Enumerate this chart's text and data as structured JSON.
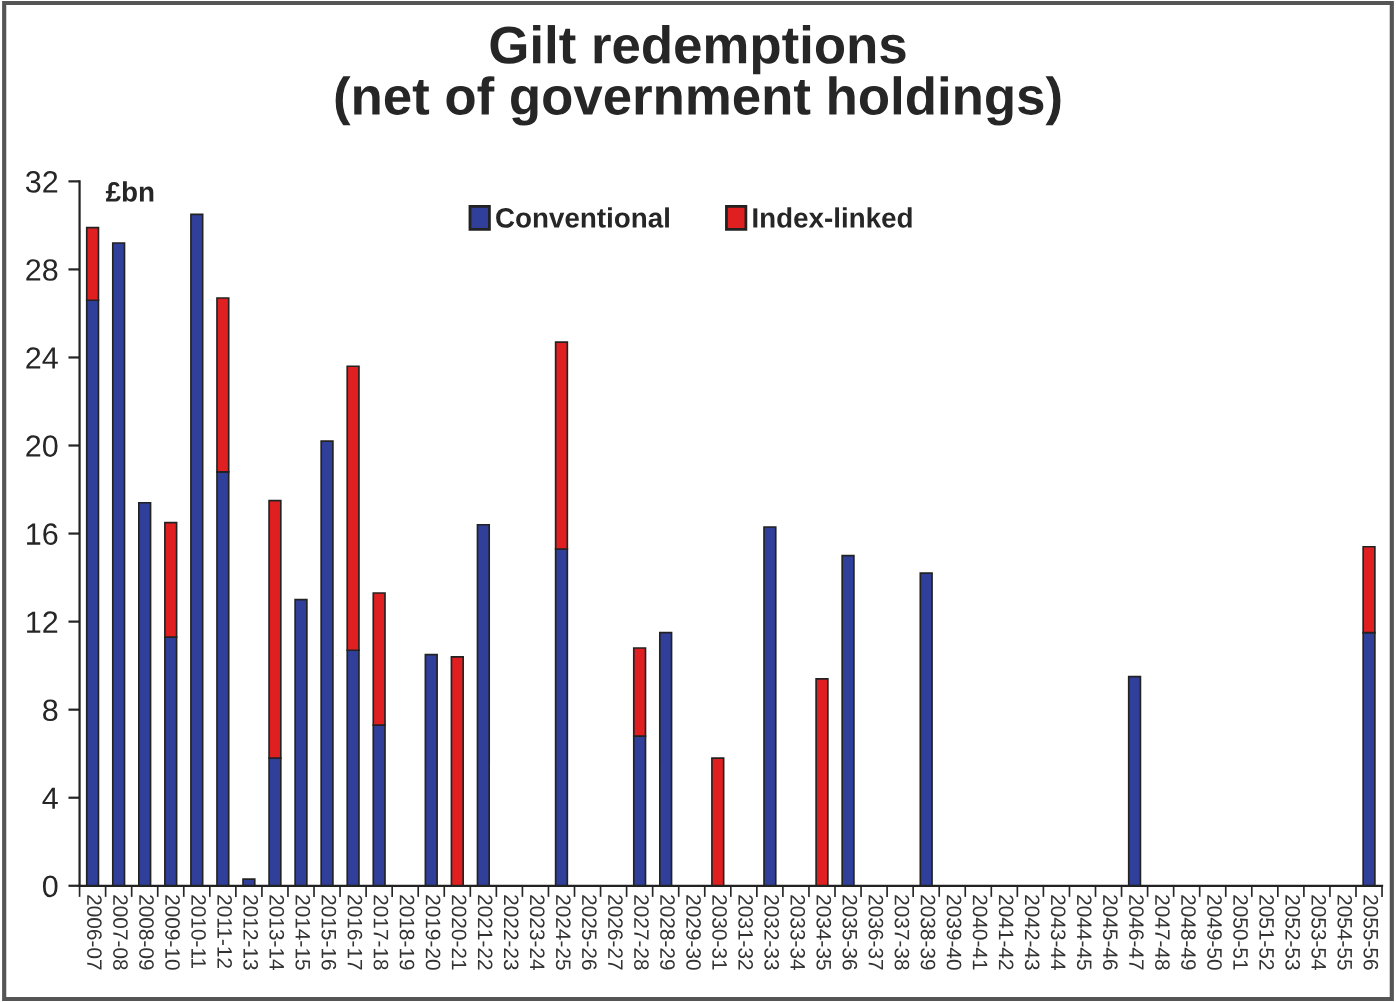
{
  "chart_data": {
    "type": "bar",
    "title": "Gilt redemptions\n(net of government holdings)",
    "ylabel": "£bn",
    "categories": [
      "2006-07",
      "2007-08",
      "2008-09",
      "2009-10",
      "2010-11",
      "2011-12",
      "2012-13",
      "2013-14",
      "2014-15",
      "2015-16",
      "2016-17",
      "2017-18",
      "2018-19",
      "2019-20",
      "2020-21",
      "2021-22",
      "2022-23",
      "2023-24",
      "2024-25",
      "2025-26",
      "2026-27",
      "2027-28",
      "2028-29",
      "2029-30",
      "2030-31",
      "2031-32",
      "2032-33",
      "2033-34",
      "2034-35",
      "2035-36",
      "2036-37",
      "2037-38",
      "2038-39",
      "2039-40",
      "2040-41",
      "2041-42",
      "2042-43",
      "2043-44",
      "2044-45",
      "2045-46",
      "2046-47",
      "2047-48",
      "2048-49",
      "2049-50",
      "2050-51",
      "2051-52",
      "2052-53",
      "2053-54",
      "2054-55",
      "2055-56"
    ],
    "series": [
      {
        "name": "Conventional",
        "color": "#2f3f9a",
        "values": [
          26.6,
          29.2,
          17.4,
          11.3,
          30.5,
          18.8,
          0.3,
          5.8,
          13.0,
          20.2,
          10.7,
          7.3,
          0,
          10.5,
          0,
          16.4,
          0,
          0,
          15.3,
          0,
          0,
          6.8,
          11.5,
          0,
          0,
          0,
          16.3,
          0,
          0,
          15.0,
          0,
          0,
          14.2,
          0,
          0,
          0,
          0,
          0,
          0,
          0,
          9.5,
          0,
          0,
          0,
          0,
          0,
          0,
          0,
          0,
          11.5
        ]
      },
      {
        "name": "Index-linked",
        "color": "#e02020",
        "values": [
          3.3,
          0,
          0,
          5.2,
          0,
          7.9,
          0,
          11.7,
          0,
          0,
          12.9,
          6.0,
          0,
          0,
          10.4,
          0,
          0,
          0,
          9.4,
          0,
          0,
          4.0,
          0,
          0,
          5.8,
          0,
          0,
          0,
          9.4,
          0,
          0,
          0,
          0,
          0,
          0,
          0,
          0,
          0,
          0,
          0,
          0,
          0,
          0,
          0,
          0,
          0,
          0,
          0,
          0,
          3.9
        ]
      }
    ],
    "stacked": true,
    "ylim": [
      0,
      32
    ],
    "yticks": [
      0,
      4,
      8,
      12,
      16,
      20,
      24,
      28,
      32
    ],
    "grid": false,
    "legend": "top"
  }
}
